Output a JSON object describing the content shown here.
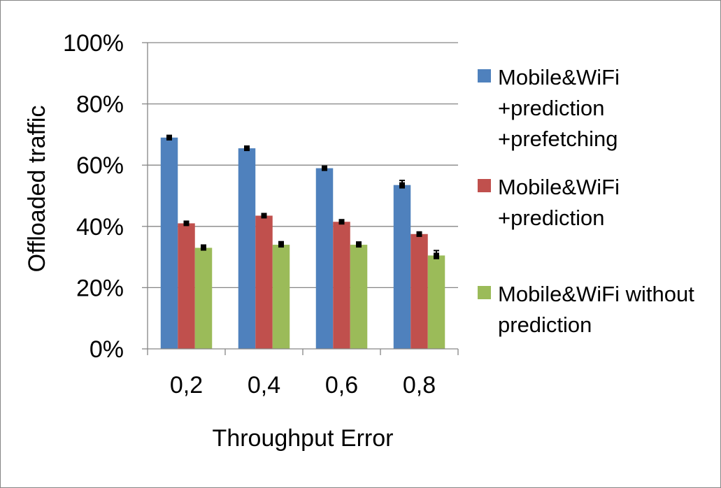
{
  "chart_data": {
    "type": "bar",
    "title": "",
    "xlabel": "Throughput Error",
    "ylabel": "Offloaded traffic",
    "categories": [
      "0,2",
      "0,4",
      "0,6",
      "0,8"
    ],
    "yticks": [
      "0%",
      "20%",
      "40%",
      "60%",
      "80%",
      "100%"
    ],
    "ylim": [
      0,
      100
    ],
    "grid": true,
    "legend_position": "right",
    "series": [
      {
        "name": "Mobile&WiFi +prediction +prefetching",
        "legend_lines": [
          "Mobile&WiFi",
          "+prediction",
          "+prefetching"
        ],
        "color": "#4F81BD",
        "values": [
          69,
          65.5,
          59,
          53.5
        ],
        "error_low": [
          68.3,
          65.2,
          58.4,
          52.6
        ],
        "error_high": [
          69.7,
          66.2,
          59.5,
          55.0
        ]
      },
      {
        "name": "Mobile&WiFi +prediction",
        "legend_lines": [
          "Mobile&WiFi",
          "+prediction"
        ],
        "color": "#C0504D",
        "values": [
          41,
          43.5,
          41.5,
          37.5
        ],
        "error_low": [
          40.8,
          43.2,
          41.2,
          36.8
        ],
        "error_high": [
          41.5,
          43.9,
          41.9,
          38.0
        ]
      },
      {
        "name": "Mobile&WiFi without prediction",
        "legend_lines": [
          "Mobile&WiFi without",
          "prediction"
        ],
        "color": "#9BBB59",
        "values": [
          33,
          34,
          34,
          30.5
        ],
        "error_low": [
          32.3,
          33.4,
          33.6,
          29.5
        ],
        "error_high": [
          33.9,
          35.0,
          34.9,
          32.1
        ]
      }
    ]
  }
}
